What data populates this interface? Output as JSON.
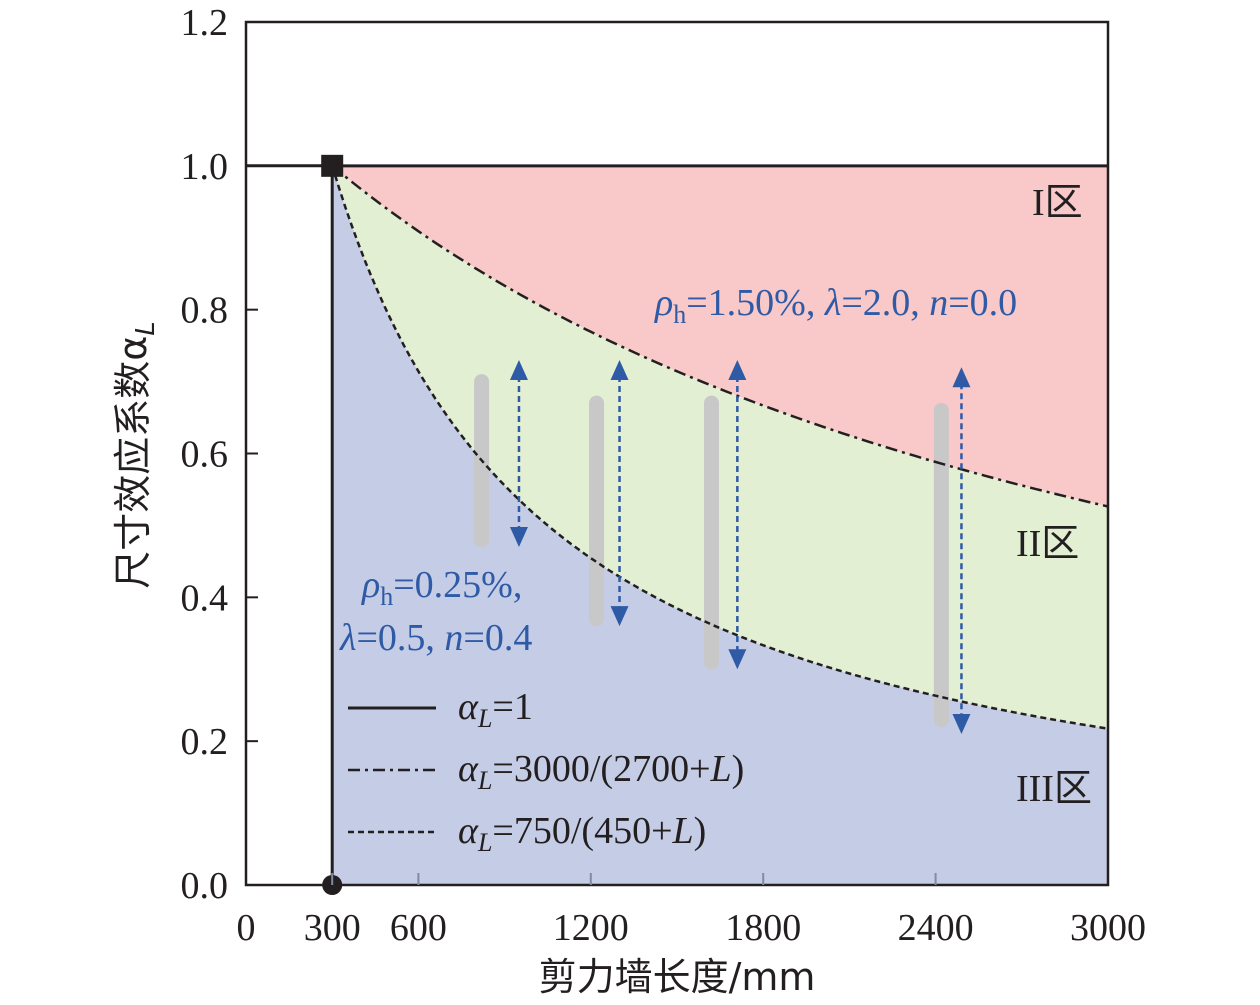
{
  "chart_data": {
    "type": "line",
    "xlabel": "剪力墙长度/mm",
    "ylabel": "尺寸效应系数α",
    "ylabel_subscript": "L",
    "xlim": [
      0,
      3000
    ],
    "ylim": [
      0,
      1.2
    ],
    "x_ticks": [
      0,
      300,
      600,
      1200,
      1800,
      2400,
      3000
    ],
    "x_tick_labels": [
      "0",
      "300",
      "600",
      "1200",
      "1800",
      "2400",
      "3000"
    ],
    "y_ticks": [
      0.0,
      0.2,
      0.4,
      0.6,
      0.8,
      1.0,
      1.2
    ],
    "y_tick_labels": [
      "0.0",
      "0.2",
      "0.4",
      "0.6",
      "0.8",
      "1.0",
      "1.2"
    ],
    "series": [
      {
        "name": "αL=1",
        "style": "solid",
        "formula": "alpha = 1 (L <= 300)",
        "x": [
          0,
          300
        ],
        "values": [
          1.0,
          1.0
        ]
      },
      {
        "name": "αL=3000/(2700+L)",
        "style": "dash-dot",
        "formula": "3000/(2700+L)",
        "x": [
          300,
          600,
          900,
          1200,
          1500,
          1800,
          2100,
          2400,
          2700,
          3000
        ],
        "values": [
          1.0,
          0.909,
          0.833,
          0.769,
          0.714,
          0.667,
          0.625,
          0.588,
          0.556,
          0.526
        ]
      },
      {
        "name": "αL=750/(450+L)",
        "style": "dashed",
        "formula": "750/(450+L)",
        "x": [
          300,
          600,
          900,
          1200,
          1500,
          1800,
          2100,
          2400,
          2700,
          3000
        ],
        "values": [
          1.0,
          0.714,
          0.556,
          0.455,
          0.385,
          0.333,
          0.294,
          0.263,
          0.238,
          0.217
        ]
      }
    ],
    "zones": [
      {
        "label": "I区",
        "color": "#f9c9c9"
      },
      {
        "label": "II区",
        "color": "#e2efd2"
      },
      {
        "label": "III区",
        "color": "#c5cce6"
      }
    ],
    "markers": [
      {
        "shape": "square",
        "x": 300,
        "y": 1.0
      },
      {
        "shape": "circle",
        "x": 300,
        "y": 0.0
      }
    ],
    "data_ranges": [
      {
        "x": 820,
        "y_min": 0.48,
        "y_max": 0.7
      },
      {
        "x": 1220,
        "y_min": 0.37,
        "y_max": 0.67
      },
      {
        "x": 1620,
        "y_min": 0.31,
        "y_max": 0.67
      },
      {
        "x": 2420,
        "y_min": 0.23,
        "y_max": 0.66
      }
    ],
    "arrows": [
      {
        "x": 950,
        "y_low": 0.47,
        "y_high": 0.73
      },
      {
        "x": 1300,
        "y_low": 0.36,
        "y_high": 0.73
      },
      {
        "x": 1710,
        "y_low": 0.3,
        "y_high": 0.73
      },
      {
        "x": 2490,
        "y_low": 0.21,
        "y_high": 0.72
      }
    ],
    "annotations": {
      "upper": {
        "rho": "ρ",
        "rho_sub": "h",
        "rest": "=1.50%, ",
        "lambda": "λ",
        "lambda_val": "=2.0, ",
        "n": "n",
        "n_val": "=0.0"
      },
      "lower_line1": {
        "rho": "ρ",
        "rho_sub": "h",
        "rest": "=0.25%,"
      },
      "lower_line2": {
        "lambda": "λ",
        "lambda_val": "=0.5, ",
        "n": "n",
        "n_val": "=0.4"
      }
    },
    "legend": {
      "position": "bottom-left",
      "entries": [
        {
          "alpha": "α",
          "sub": "L",
          "text": "=1",
          "style": "solid"
        },
        {
          "alpha": "α",
          "sub": "L",
          "text_a": "=3000/(2700+",
          "L": "L",
          "text_b": ")",
          "style": "dash-dot"
        },
        {
          "alpha": "α",
          "sub": "L",
          "text_a": "=750/(450+",
          "L": "L",
          "text_b": ")",
          "style": "dashed"
        }
      ]
    },
    "colors": {
      "arrow": "#2e5aa6",
      "range_bar": "#c8c8c8",
      "axis": "#231f20"
    }
  }
}
